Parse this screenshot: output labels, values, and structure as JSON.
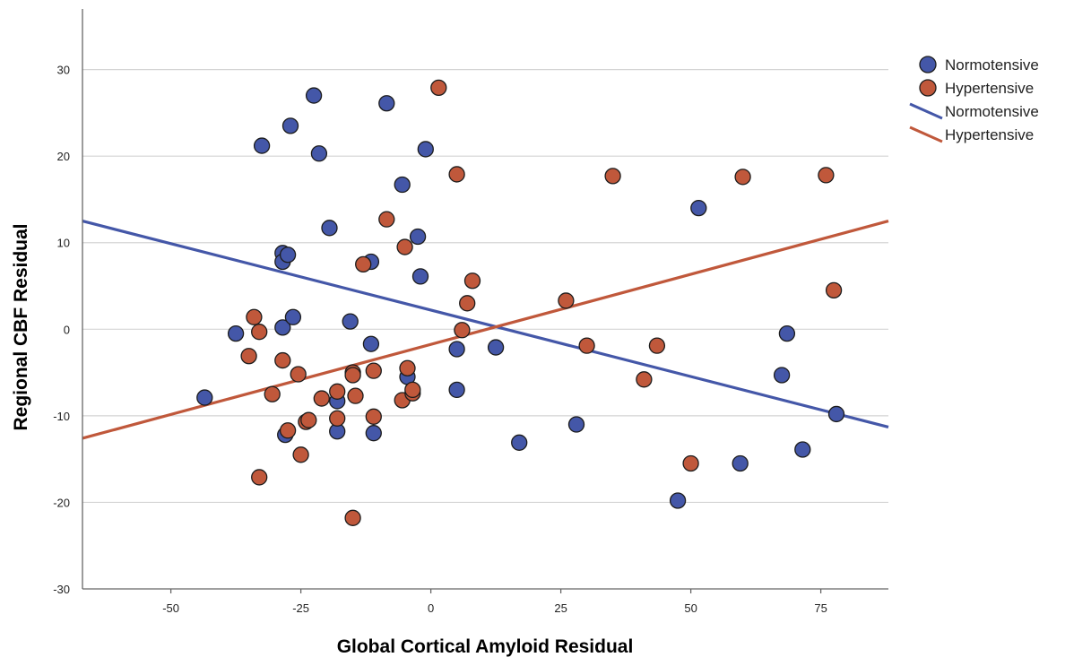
{
  "chart_data": {
    "type": "scatter",
    "title": "",
    "xlabel": "Global Cortical Amyloid Residual",
    "ylabel": "Regional CBF Residual",
    "xlim": [
      -67,
      88
    ],
    "ylim": [
      -30,
      37
    ],
    "xticks": [
      -50,
      -25,
      0,
      25,
      50,
      75
    ],
    "yticks": [
      -30,
      -20,
      -10,
      0,
      10,
      20,
      30
    ],
    "grid": "horizontal",
    "legend_position": "top-right",
    "series": [
      {
        "name": "Normotensive",
        "color": "#4457a8",
        "points": [
          {
            "x": -43.5,
            "y": -7.9
          },
          {
            "x": -37.5,
            "y": -0.5
          },
          {
            "x": -32.5,
            "y": 21.2
          },
          {
            "x": -28.5,
            "y": 8.8
          },
          {
            "x": -28.5,
            "y": 7.8
          },
          {
            "x": -27.5,
            "y": 8.6
          },
          {
            "x": -28.5,
            "y": 0.2
          },
          {
            "x": -26.5,
            "y": 1.4
          },
          {
            "x": -27.0,
            "y": 23.5
          },
          {
            "x": -28.0,
            "y": -12.2
          },
          {
            "x": -22.5,
            "y": 27.0
          },
          {
            "x": -21.5,
            "y": 20.3
          },
          {
            "x": -19.5,
            "y": 11.7
          },
          {
            "x": -18.0,
            "y": -8.3
          },
          {
            "x": -18.0,
            "y": -11.8
          },
          {
            "x": -15.5,
            "y": 0.9
          },
          {
            "x": -11.5,
            "y": 7.8
          },
          {
            "x": -11.5,
            "y": -1.7
          },
          {
            "x": -11.0,
            "y": -12.0
          },
          {
            "x": -8.5,
            "y": 26.1
          },
          {
            "x": -5.5,
            "y": 16.7
          },
          {
            "x": -4.5,
            "y": -5.5
          },
          {
            "x": -2.5,
            "y": 10.7
          },
          {
            "x": -2.0,
            "y": 6.1
          },
          {
            "x": -1.0,
            "y": 20.8
          },
          {
            "x": 5.0,
            "y": -2.3
          },
          {
            "x": 5.0,
            "y": -7.0
          },
          {
            "x": 12.5,
            "y": -2.1
          },
          {
            "x": 17.0,
            "y": -13.1
          },
          {
            "x": 28.0,
            "y": -11.0
          },
          {
            "x": 47.5,
            "y": -19.8
          },
          {
            "x": 51.5,
            "y": 14.0
          },
          {
            "x": 59.5,
            "y": -15.5
          },
          {
            "x": 67.5,
            "y": -5.3
          },
          {
            "x": 68.5,
            "y": -0.5
          },
          {
            "x": 71.5,
            "y": -13.9
          },
          {
            "x": 78.0,
            "y": -9.8
          }
        ]
      },
      {
        "name": "Hypertensive",
        "color": "#c0583b",
        "points": [
          {
            "x": -34.0,
            "y": 1.4
          },
          {
            "x": -33.0,
            "y": -0.3
          },
          {
            "x": -35.0,
            "y": -3.1
          },
          {
            "x": -33.0,
            "y": -17.1
          },
          {
            "x": -30.5,
            "y": -7.5
          },
          {
            "x": -28.5,
            "y": -3.6
          },
          {
            "x": -27.5,
            "y": -11.7
          },
          {
            "x": -25.5,
            "y": -5.2
          },
          {
            "x": -25.0,
            "y": -14.5
          },
          {
            "x": -24.0,
            "y": -10.7
          },
          {
            "x": -23.5,
            "y": -10.5
          },
          {
            "x": -21.0,
            "y": -8.0
          },
          {
            "x": -18.0,
            "y": -7.2
          },
          {
            "x": -18.0,
            "y": -10.3
          },
          {
            "x": -15.0,
            "y": -5.0
          },
          {
            "x": -15.0,
            "y": -5.3
          },
          {
            "x": -14.5,
            "y": -7.7
          },
          {
            "x": -15.0,
            "y": -21.8
          },
          {
            "x": -13.0,
            "y": 7.5
          },
          {
            "x": -11.0,
            "y": -4.8
          },
          {
            "x": -11.0,
            "y": -10.1
          },
          {
            "x": -8.5,
            "y": 12.7
          },
          {
            "x": -5.0,
            "y": 9.5
          },
          {
            "x": -5.5,
            "y": -8.2
          },
          {
            "x": -4.5,
            "y": -4.5
          },
          {
            "x": -3.5,
            "y": -7.4
          },
          {
            "x": -3.5,
            "y": -7.0
          },
          {
            "x": 1.5,
            "y": 27.9
          },
          {
            "x": 5.0,
            "y": 17.9
          },
          {
            "x": 6.0,
            "y": -0.1
          },
          {
            "x": 7.0,
            "y": 3.0
          },
          {
            "x": 8.0,
            "y": 5.6
          },
          {
            "x": 26.0,
            "y": 3.3
          },
          {
            "x": 30.0,
            "y": -1.9
          },
          {
            "x": 35.0,
            "y": 17.7
          },
          {
            "x": 41.0,
            "y": -5.8
          },
          {
            "x": 43.5,
            "y": -1.9
          },
          {
            "x": 50.0,
            "y": -15.5
          },
          {
            "x": 60.0,
            "y": 17.6
          },
          {
            "x": 76.0,
            "y": 17.8
          },
          {
            "x": 77.5,
            "y": 4.5
          }
        ]
      }
    ],
    "fit_lines": [
      {
        "name": "Normotensive",
        "color": "#4457a8",
        "x": [
          -67,
          88
        ],
        "y": [
          12.5,
          -11.3
        ]
      },
      {
        "name": "Hypertensive",
        "color": "#c0583b",
        "x": [
          -67,
          88
        ],
        "y": [
          -12.6,
          12.5
        ]
      }
    ]
  }
}
